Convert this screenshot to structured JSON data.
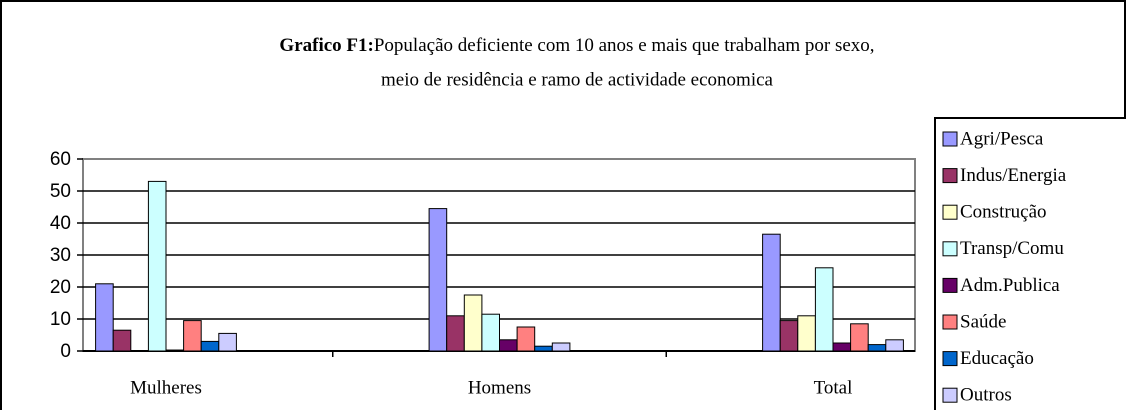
{
  "chart_data": {
    "type": "bar",
    "title_label": "Grafico F1:",
    "title": [
      "População deficiente com 10 anos e mais que trabalham por sexo,",
      "meio de residência e ramo de actividade economica"
    ],
    "categories": [
      "Mulheres",
      "Homens",
      "Total"
    ],
    "series": [
      {
        "name": "Agri/Pesca",
        "color": "#9999ff",
        "values": [
          21,
          44.5,
          36.5
        ]
      },
      {
        "name": "Indus/Energia",
        "color": "#993366",
        "values": [
          6.5,
          11,
          9.5
        ]
      },
      {
        "name": "Construção",
        "color": "#ffffcc",
        "values": [
          0,
          17.5,
          11
        ]
      },
      {
        "name": "Transp/Comu",
        "color": "#ccffff",
        "values": [
          53,
          11.5,
          26
        ]
      },
      {
        "name": "Adm.Publica",
        "color": "#660066",
        "values": [
          0.3,
          3.5,
          2.5
        ]
      },
      {
        "name": "Saúde",
        "color": "#ff8080",
        "values": [
          9.5,
          7.5,
          8.5
        ]
      },
      {
        "name": "Educação",
        "color": "#0066cc",
        "values": [
          3,
          1.5,
          2
        ]
      },
      {
        "name": "Outros",
        "color": "#ccccff",
        "values": [
          5.5,
          2.5,
          3.5
        ]
      }
    ],
    "ylim": [
      0,
      60
    ],
    "yticks": [
      0,
      10,
      20,
      30,
      40,
      50,
      60
    ],
    "grid": true,
    "legend": "right"
  }
}
